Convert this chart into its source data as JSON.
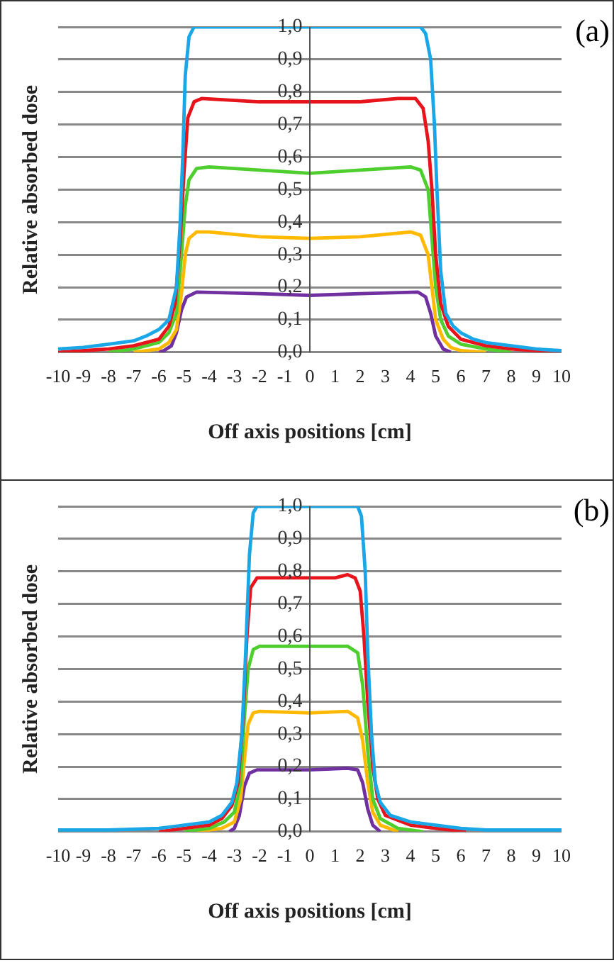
{
  "chart_data": [
    {
      "type": "line",
      "xlabel": "Off axis positions [cm]",
      "ylabel": "Relative absorbed dose",
      "annotations": [
        "(a)"
      ],
      "grid": "y",
      "legend": false,
      "marker": "none",
      "line_style": "solid",
      "xlim": [
        -10,
        10
      ],
      "xticks": [
        -10,
        -9,
        -8,
        -7,
        -6,
        -5,
        -4,
        -3,
        -2,
        -1,
        0,
        1,
        2,
        3,
        4,
        5,
        6,
        7,
        8,
        9,
        10
      ],
      "ylim": [
        0,
        1
      ],
      "yticks": [
        {
          "value": 0,
          "label": "0,0"
        },
        {
          "value": 0.1,
          "label": "0,1"
        },
        {
          "value": 0.2,
          "label": "0,2"
        },
        {
          "value": 0.3,
          "label": "0,3"
        },
        {
          "value": 0.4,
          "label": "0,4"
        },
        {
          "value": 0.5,
          "label": "0,5"
        },
        {
          "value": 0.6,
          "label": "0,6"
        },
        {
          "value": 0.7,
          "label": "0,7"
        },
        {
          "value": 0.8,
          "label": "0,8"
        },
        {
          "value": 0.9,
          "label": "0,9"
        },
        {
          "value": 1,
          "label": "1,0"
        }
      ],
      "series": [
        {
          "color": "#1aa7e8",
          "x": [
            -10,
            -9,
            -8,
            -7,
            -6.5,
            -6,
            -5.6,
            -5.3,
            -5.15,
            -5.05,
            -4.95,
            -4.8,
            -4.6,
            0,
            4.4,
            4.6,
            4.8,
            4.95,
            5.05,
            5.2,
            5.4,
            5.7,
            6,
            6.5,
            7,
            8,
            9,
            10
          ],
          "values": [
            0.01,
            0.015,
            0.025,
            0.035,
            0.05,
            0.07,
            0.1,
            0.2,
            0.4,
            0.6,
            0.85,
            0.97,
            1,
            1,
            1,
            0.98,
            0.9,
            0.7,
            0.5,
            0.25,
            0.12,
            0.08,
            0.06,
            0.04,
            0.03,
            0.02,
            0.01,
            0.005
          ]
        },
        {
          "color": "#e8141c",
          "x": [
            -10,
            -9,
            -8,
            -7,
            -6,
            -5.6,
            -5.35,
            -5.15,
            -5,
            -4.85,
            -4.6,
            -4.3,
            -2,
            0,
            2,
            3.5,
            4.2,
            4.5,
            4.7,
            4.85,
            5,
            5.2,
            5.5,
            6,
            7,
            8,
            9,
            10
          ],
          "values": [
            0,
            0.005,
            0.01,
            0.02,
            0.04,
            0.08,
            0.15,
            0.35,
            0.55,
            0.72,
            0.77,
            0.78,
            0.77,
            0.77,
            0.77,
            0.78,
            0.78,
            0.75,
            0.65,
            0.5,
            0.3,
            0.15,
            0.08,
            0.04,
            0.02,
            0.01,
            0.005,
            0
          ]
        },
        {
          "color": "#4fcf2f",
          "x": [
            -8,
            -7,
            -6,
            -5.6,
            -5.3,
            -5.1,
            -4.95,
            -4.8,
            -4.5,
            -4,
            -2,
            0,
            2,
            4,
            4.4,
            4.7,
            4.85,
            5,
            5.2,
            5.5,
            6,
            7,
            8
          ],
          "values": [
            0,
            0.01,
            0.03,
            0.06,
            0.12,
            0.3,
            0.45,
            0.53,
            0.565,
            0.57,
            0.56,
            0.55,
            0.56,
            0.57,
            0.56,
            0.5,
            0.35,
            0.2,
            0.1,
            0.05,
            0.025,
            0.01,
            0
          ]
        },
        {
          "color": "#ffb900",
          "x": [
            -7,
            -6,
            -5.6,
            -5.3,
            -5.1,
            -4.95,
            -4.8,
            -4.5,
            -4,
            -2,
            0,
            2,
            4,
            4.4,
            4.7,
            4.85,
            5,
            5.3,
            5.6,
            6,
            7
          ],
          "values": [
            0,
            0.01,
            0.03,
            0.07,
            0.18,
            0.3,
            0.35,
            0.37,
            0.37,
            0.355,
            0.35,
            0.355,
            0.37,
            0.36,
            0.3,
            0.2,
            0.1,
            0.04,
            0.015,
            0.005,
            0
          ]
        },
        {
          "color": "#7030a0",
          "x": [
            -6,
            -5.8,
            -5.5,
            -5.3,
            -5.1,
            -4.9,
            -4.5,
            -2,
            0,
            2,
            4.3,
            4.6,
            4.8,
            5,
            5.3,
            5.6
          ],
          "values": [
            0,
            0.005,
            0.02,
            0.06,
            0.13,
            0.17,
            0.185,
            0.18,
            0.175,
            0.18,
            0.185,
            0.17,
            0.12,
            0.05,
            0.01,
            0
          ]
        }
      ]
    },
    {
      "type": "line",
      "xlabel": "Off axis positions [cm]",
      "ylabel": "Relative absorbed dose",
      "annotations": [
        "(b)"
      ],
      "grid": "y",
      "legend": false,
      "marker": "none",
      "line_style": "solid",
      "xlim": [
        -10,
        10
      ],
      "xticks": [
        -10,
        -9,
        -8,
        -7,
        -6,
        -5,
        -4,
        -3,
        -2,
        -1,
        0,
        1,
        2,
        3,
        4,
        5,
        6,
        7,
        8,
        9,
        10
      ],
      "ylim": [
        0,
        1
      ],
      "yticks": [
        {
          "value": 0,
          "label": "0,0"
        },
        {
          "value": 0.1,
          "label": "0,1"
        },
        {
          "value": 0.2,
          "label": "0,2"
        },
        {
          "value": 0.3,
          "label": "0,3"
        },
        {
          "value": 0.4,
          "label": "0,4"
        },
        {
          "value": 0.5,
          "label": "0,5"
        },
        {
          "value": 0.6,
          "label": "0,6"
        },
        {
          "value": 0.7,
          "label": "0,7"
        },
        {
          "value": 0.8,
          "label": "0,8"
        },
        {
          "value": 0.9,
          "label": "0,9"
        },
        {
          "value": 1,
          "label": "1,0"
        }
      ],
      "series": [
        {
          "color": "#1aa7e8",
          "x": [
            -10,
            -8,
            -6,
            -5,
            -4,
            -3.5,
            -3.1,
            -2.9,
            -2.7,
            -2.55,
            -2.4,
            -2.25,
            -2.1,
            0,
            1.9,
            2.05,
            2.2,
            2.3,
            2.45,
            2.6,
            2.8,
            3.2,
            4,
            5,
            6,
            7,
            10
          ],
          "values": [
            0.005,
            0.005,
            0.01,
            0.02,
            0.03,
            0.05,
            0.09,
            0.15,
            0.3,
            0.55,
            0.85,
            0.98,
            1,
            1,
            1,
            0.97,
            0.8,
            0.55,
            0.3,
            0.15,
            0.09,
            0.05,
            0.03,
            0.02,
            0.01,
            0.005,
            0.005
          ]
        },
        {
          "color": "#e8141c",
          "x": [
            -6,
            -5,
            -4,
            -3.5,
            -3.1,
            -2.85,
            -2.65,
            -2.5,
            -2.35,
            -2.1,
            0,
            1,
            1.5,
            1.8,
            2,
            2.15,
            2.3,
            2.5,
            2.7,
            3,
            4,
            5,
            6.2
          ],
          "values": [
            0,
            0.01,
            0.02,
            0.04,
            0.08,
            0.15,
            0.35,
            0.6,
            0.75,
            0.78,
            0.78,
            0.78,
            0.79,
            0.78,
            0.74,
            0.6,
            0.4,
            0.2,
            0.1,
            0.05,
            0.02,
            0.01,
            0
          ]
        },
        {
          "color": "#4fcf2f",
          "x": [
            -5,
            -4,
            -3.4,
            -3,
            -2.75,
            -2.6,
            -2.45,
            -2.25,
            -2,
            0,
            1.5,
            1.9,
            2.1,
            2.3,
            2.5,
            2.8,
            3.5,
            4.5
          ],
          "values": [
            0,
            0.01,
            0.03,
            0.06,
            0.15,
            0.35,
            0.5,
            0.56,
            0.57,
            0.57,
            0.57,
            0.55,
            0.45,
            0.25,
            0.1,
            0.04,
            0.01,
            0
          ]
        },
        {
          "color": "#ffb900",
          "x": [
            -4.5,
            -3.5,
            -3,
            -2.75,
            -2.6,
            -2.45,
            -2.25,
            -2,
            0,
            1.5,
            1.9,
            2.1,
            2.3,
            2.5,
            2.8,
            3.5
          ],
          "values": [
            0,
            0.01,
            0.03,
            0.1,
            0.22,
            0.33,
            0.365,
            0.37,
            0.365,
            0.37,
            0.35,
            0.28,
            0.15,
            0.06,
            0.02,
            0
          ]
        },
        {
          "color": "#7030a0",
          "x": [
            -3.2,
            -3,
            -2.8,
            -2.6,
            -2.4,
            -2.1,
            0,
            1.5,
            1.9,
            2.1,
            2.3,
            2.5,
            2.8
          ],
          "values": [
            0,
            0.01,
            0.05,
            0.14,
            0.18,
            0.19,
            0.19,
            0.195,
            0.19,
            0.15,
            0.07,
            0.02,
            0
          ]
        }
      ]
    }
  ]
}
